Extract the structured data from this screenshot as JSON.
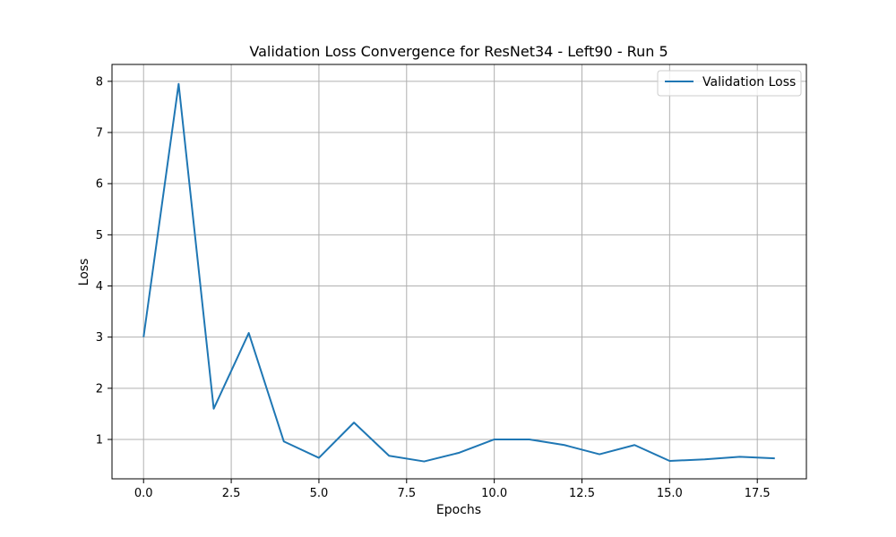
{
  "chart_data": {
    "type": "line",
    "title": "Validation Loss Convergence for ResNet34 - Left90 - Run 5",
    "xlabel": "Epochs",
    "ylabel": "Loss",
    "xlim": [
      -0.9,
      18.9
    ],
    "ylim": [
      0.23,
      8.33
    ],
    "xticks": [
      0.0,
      2.5,
      5.0,
      7.5,
      10.0,
      12.5,
      15.0,
      17.5
    ],
    "xtick_labels": [
      "0.0",
      "2.5",
      "5.0",
      "7.5",
      "10.0",
      "12.5",
      "15.0",
      "17.5"
    ],
    "yticks": [
      1,
      2,
      3,
      4,
      5,
      6,
      7,
      8
    ],
    "ytick_labels": [
      "1",
      "2",
      "3",
      "4",
      "5",
      "6",
      "7",
      "8"
    ],
    "grid": true,
    "legend_position": "top-right",
    "series": [
      {
        "name": "Validation Loss",
        "color": "#1f77b4",
        "x": [
          0,
          1,
          2,
          3,
          4,
          5,
          6,
          7,
          8,
          9,
          10,
          11,
          12,
          13,
          14,
          15,
          16,
          17,
          18
        ],
        "y": [
          3.0,
          7.95,
          1.6,
          3.08,
          0.96,
          0.64,
          1.33,
          0.68,
          0.57,
          0.74,
          1.0,
          1.0,
          0.89,
          0.71,
          0.89,
          0.58,
          0.61,
          0.66,
          0.63
        ]
      }
    ]
  }
}
